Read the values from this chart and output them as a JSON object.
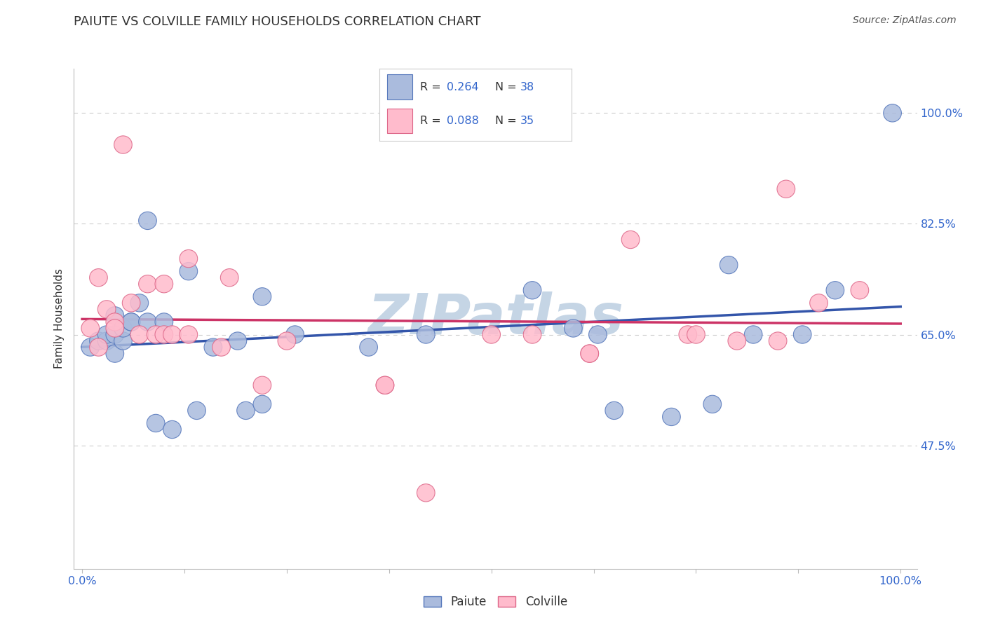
{
  "title": "PAIUTE VS COLVILLE FAMILY HOUSEHOLDS CORRELATION CHART",
  "source": "Source: ZipAtlas.com",
  "ylabel": "Family Households",
  "y_tick_values": [
    0.475,
    0.65,
    0.825,
    1.0
  ],
  "y_tick_labels": [
    "47.5%",
    "65.0%",
    "82.5%",
    "100.0%"
  ],
  "legend_r_paiute": "R = 0.264",
  "legend_n_paiute": "N = 38",
  "legend_r_colville": "R = 0.088",
  "legend_n_colville": "N = 35",
  "paiute_color_fill": "#AABBDD",
  "paiute_color_edge": "#5577BB",
  "colville_color_fill": "#FFBBCC",
  "colville_color_edge": "#DD6688",
  "paiute_line_color": "#3355AA",
  "colville_line_color": "#CC3366",
  "watermark_color": "#C5D5E5",
  "paiute_x": [
    0.01,
    0.02,
    0.03,
    0.03,
    0.04,
    0.04,
    0.04,
    0.05,
    0.05,
    0.06,
    0.06,
    0.07,
    0.08,
    0.08,
    0.09,
    0.1,
    0.11,
    0.13,
    0.14,
    0.16,
    0.19,
    0.2,
    0.22,
    0.22,
    0.26,
    0.35,
    0.42,
    0.55,
    0.6,
    0.63,
    0.65,
    0.72,
    0.77,
    0.79,
    0.82,
    0.88,
    0.92,
    0.99
  ],
  "paiute_y": [
    0.63,
    0.64,
    0.64,
    0.65,
    0.62,
    0.65,
    0.68,
    0.64,
    0.66,
    0.67,
    0.67,
    0.7,
    0.67,
    0.83,
    0.51,
    0.67,
    0.5,
    0.75,
    0.53,
    0.63,
    0.64,
    0.53,
    0.54,
    0.71,
    0.65,
    0.63,
    0.65,
    0.72,
    0.66,
    0.65,
    0.53,
    0.52,
    0.54,
    0.76,
    0.65,
    0.65,
    0.72,
    1.0
  ],
  "colville_x": [
    0.01,
    0.02,
    0.02,
    0.03,
    0.04,
    0.04,
    0.05,
    0.06,
    0.07,
    0.08,
    0.09,
    0.1,
    0.1,
    0.11,
    0.13,
    0.13,
    0.17,
    0.18,
    0.22,
    0.25,
    0.37,
    0.37,
    0.42,
    0.5,
    0.55,
    0.62,
    0.62,
    0.67,
    0.74,
    0.75,
    0.8,
    0.85,
    0.86,
    0.9,
    0.95
  ],
  "colville_y": [
    0.66,
    0.63,
    0.74,
    0.69,
    0.67,
    0.66,
    0.95,
    0.7,
    0.65,
    0.73,
    0.65,
    0.65,
    0.73,
    0.65,
    0.65,
    0.77,
    0.63,
    0.74,
    0.57,
    0.64,
    0.57,
    0.57,
    0.4,
    0.65,
    0.65,
    0.62,
    0.62,
    0.8,
    0.65,
    0.65,
    0.64,
    0.64,
    0.88,
    0.7,
    0.72
  ]
}
